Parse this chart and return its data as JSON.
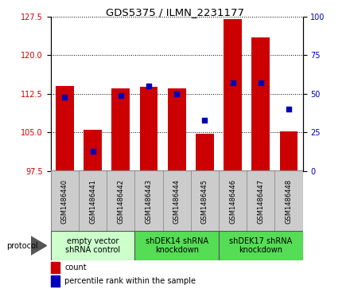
{
  "title": "GDS5375 / ILMN_2231177",
  "samples": [
    "GSM1486440",
    "GSM1486441",
    "GSM1486442",
    "GSM1486443",
    "GSM1486444",
    "GSM1486445",
    "GSM1486446",
    "GSM1486447",
    "GSM1486448"
  ],
  "count_values": [
    114.0,
    105.5,
    113.5,
    113.8,
    113.5,
    104.8,
    127.0,
    123.5,
    105.2
  ],
  "percentile_values": [
    48,
    13,
    49,
    55,
    50,
    33,
    57,
    57,
    40
  ],
  "ylim_left": [
    97.5,
    127.5
  ],
  "ylim_right": [
    0,
    100
  ],
  "yticks_left": [
    97.5,
    105.0,
    112.5,
    120.0,
    127.5
  ],
  "yticks_right": [
    0,
    25,
    50,
    75,
    100
  ],
  "bar_color": "#cc0000",
  "dot_color": "#0000bb",
  "bar_bottom": 97.5,
  "bar_width": 0.65,
  "groups": [
    {
      "label": "empty vector\nshRNA control",
      "start": 0,
      "end": 3,
      "color": "#ccffcc"
    },
    {
      "label": "shDEK14 shRNA\nknockdown",
      "start": 3,
      "end": 6,
      "color": "#55dd55"
    },
    {
      "label": "shDEK17 shRNA\nknockdown",
      "start": 6,
      "end": 9,
      "color": "#55dd55"
    }
  ],
  "protocol_label": "protocol",
  "legend_count_label": "count",
  "legend_pct_label": "percentile rank within the sample",
  "grid_style": "dotted",
  "sample_box_color": "#cccccc",
  "title_fontsize": 9.5,
  "tick_fontsize": 7,
  "sample_fontsize": 6,
  "group_fontsize": 7,
  "legend_fontsize": 7
}
